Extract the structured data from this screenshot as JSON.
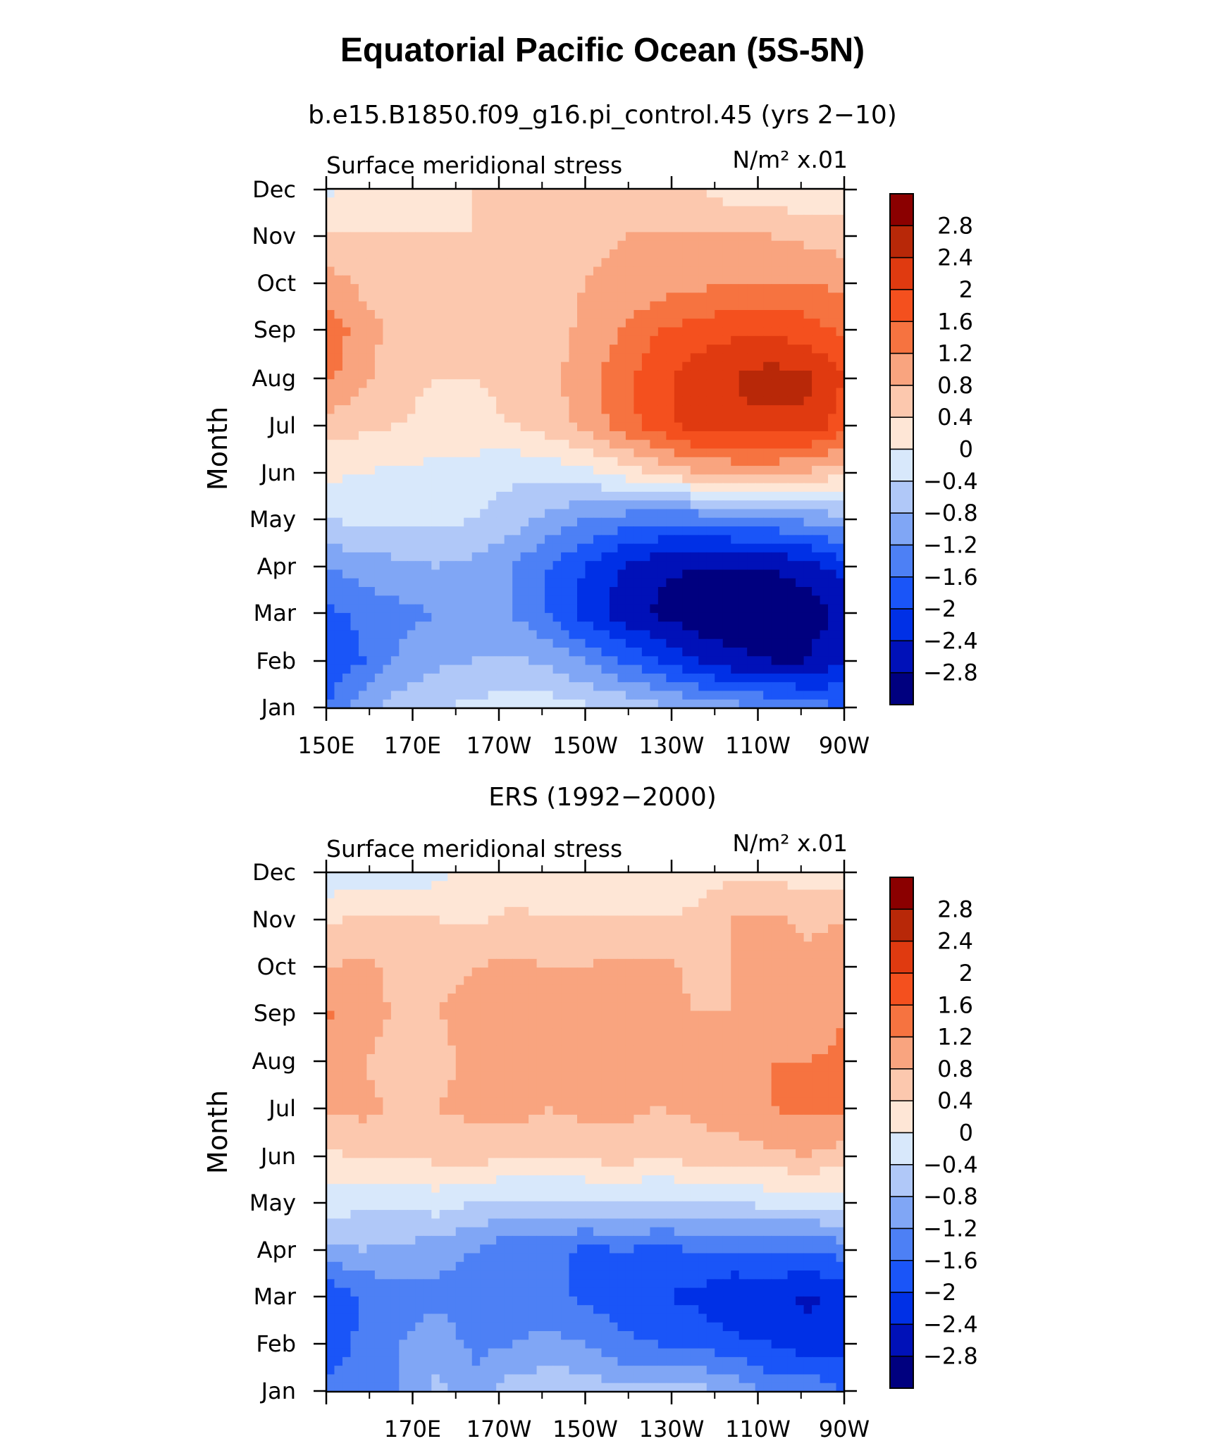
{
  "title": "Equatorial Pacific Ocean (5S-5N)",
  "chart_data": [
    {
      "type": "heatmap",
      "subtitle": "b.e15.B1850.f09_g16.pi_control.45 (yrs 2−10)",
      "left_label": "Surface meridional stress",
      "units": "N/m² x.01",
      "ylabel": "Month",
      "x_tick_labels": [
        "150E",
        "170E",
        "170W",
        "150W",
        "130W",
        "110W",
        "90W"
      ],
      "y_tick_labels": [
        "Jan",
        "Feb",
        "Mar",
        "Apr",
        "May",
        "Jun",
        "Jul",
        "Aug",
        "Sep",
        "Oct",
        "Nov",
        "Dec"
      ],
      "lon_range": [
        150,
        270
      ],
      "months": 12,
      "values": [
        [
          -1.6,
          -1.0,
          -0.6,
          -0.4,
          -0.3,
          -0.2,
          -0.2,
          -0.3,
          -0.5,
          -0.7,
          -0.9,
          -1.0,
          -1.2,
          -1.4,
          -1.6
        ],
        [
          -1.9,
          -1.6,
          -1.1,
          -0.9,
          -0.8,
          -0.7,
          -0.9,
          -1.2,
          -1.6,
          -2.0,
          -2.4,
          -2.7,
          -2.8,
          -2.8,
          -2.4
        ],
        [
          -1.7,
          -1.5,
          -1.3,
          -1.2,
          -1.1,
          -1.2,
          -1.6,
          -2.2,
          -2.6,
          -2.9,
          -3.1,
          -3.1,
          -3.1,
          -3.0,
          -2.7
        ],
        [
          -1.2,
          -1.0,
          -0.9,
          -0.8,
          -0.9,
          -1.2,
          -1.6,
          -2.0,
          -2.4,
          -2.7,
          -2.8,
          -2.8,
          -2.8,
          -2.6,
          -2.2
        ],
        [
          -0.4,
          -0.3,
          -0.3,
          -0.3,
          -0.4,
          -0.6,
          -0.9,
          -1.2,
          -1.4,
          -1.5,
          -1.5,
          -1.4,
          -1.3,
          -1.1,
          -0.9
        ],
        [
          0.1,
          0.0,
          -0.1,
          -0.1,
          -0.2,
          -0.3,
          -0.3,
          -0.1,
          0.2,
          0.5,
          0.8,
          0.9,
          0.9,
          0.8,
          0.5
        ],
        [
          0.6,
          0.5,
          0.4,
          0.3,
          0.3,
          0.4,
          0.6,
          0.9,
          1.4,
          1.8,
          2.2,
          2.3,
          2.3,
          2.3,
          1.8
        ],
        [
          1.3,
          0.9,
          0.5,
          0.4,
          0.4,
          0.5,
          0.7,
          1.0,
          1.5,
          1.9,
          2.2,
          2.4,
          2.6,
          2.5,
          2.0
        ],
        [
          1.5,
          1.0,
          0.6,
          0.5,
          0.5,
          0.5,
          0.6,
          0.9,
          1.2,
          1.6,
          1.8,
          1.9,
          1.9,
          1.8,
          1.5
        ],
        [
          1.0,
          0.7,
          0.6,
          0.5,
          0.5,
          0.5,
          0.6,
          0.8,
          0.9,
          1.0,
          1.1,
          1.2,
          1.2,
          1.2,
          1.1
        ],
        [
          0.4,
          0.4,
          0.4,
          0.4,
          0.4,
          0.5,
          0.6,
          0.7,
          0.8,
          0.8,
          0.8,
          0.8,
          0.8,
          0.7,
          0.6
        ],
        [
          -0.1,
          0.1,
          0.2,
          0.3,
          0.4,
          0.5,
          0.5,
          0.6,
          0.6,
          0.5,
          0.4,
          0.2,
          0.1,
          0.1,
          0.2
        ]
      ]
    },
    {
      "type": "heatmap",
      "subtitle": "ERS (1992−2000)",
      "left_label": "Surface meridional stress",
      "units": "N/m² x.01",
      "ylabel": "Month",
      "x_tick_labels": [
        "170E",
        "170W",
        "150W",
        "130W",
        "110W",
        "90W"
      ],
      "y_tick_labels": [
        "Jan",
        "Feb",
        "Mar",
        "Apr",
        "May",
        "Jun",
        "Jul",
        "Aug",
        "Sep",
        "Oct",
        "Nov",
        "Dec"
      ],
      "lon_range": [
        150,
        270
      ],
      "months": 12,
      "values": [
        [
          -1.5,
          -1.4,
          -1.2,
          -0.7,
          -1.1,
          -0.6,
          -0.5,
          -0.5,
          -0.7,
          -0.7,
          -0.6,
          -0.9,
          -1.3,
          -1.3,
          -1.6
        ],
        [
          -1.8,
          -1.5,
          -1.2,
          -0.9,
          -1.3,
          -1.2,
          -1.1,
          -1.2,
          -1.5,
          -1.6,
          -1.7,
          -1.9,
          -2.0,
          -2.2,
          -2.1
        ],
        [
          -2.0,
          -1.6,
          -1.4,
          -1.3,
          -1.6,
          -1.5,
          -1.4,
          -1.7,
          -1.8,
          -2.0,
          -2.1,
          -2.4,
          -2.3,
          -2.5,
          -2.3
        ],
        [
          -0.9,
          -0.8,
          -0.9,
          -1.0,
          -1.2,
          -1.5,
          -1.4,
          -1.7,
          -1.6,
          -1.7,
          -1.6,
          -1.6,
          -1.5,
          -1.6,
          -1.4
        ],
        [
          -0.2,
          -0.3,
          -0.3,
          -0.2,
          -0.4,
          -0.5,
          -0.5,
          -0.5,
          -0.4,
          -0.5,
          -0.4,
          -0.4,
          -0.3,
          -0.3,
          -0.2
        ],
        [
          0.3,
          0.5,
          0.5,
          0.5,
          0.6,
          0.4,
          0.5,
          0.5,
          0.6,
          0.4,
          0.6,
          0.6,
          0.7,
          0.8,
          0.6
        ],
        [
          0.9,
          0.9,
          0.7,
          0.8,
          0.9,
          1.0,
          0.8,
          0.9,
          0.9,
          0.8,
          0.9,
          1.0,
          1.2,
          1.3,
          1.3
        ],
        [
          0.9,
          0.8,
          0.6,
          0.7,
          0.9,
          0.9,
          0.9,
          1.0,
          1.0,
          0.9,
          0.8,
          0.9,
          1.2,
          1.2,
          1.3
        ],
        [
          1.3,
          1.0,
          0.7,
          0.8,
          0.9,
          1.0,
          0.9,
          0.9,
          1.0,
          0.9,
          0.8,
          0.8,
          0.9,
          0.9,
          1.2
        ],
        [
          0.8,
          0.9,
          0.7,
          0.7,
          0.8,
          0.9,
          0.8,
          0.8,
          0.9,
          0.9,
          0.7,
          0.8,
          0.9,
          0.9,
          1.1
        ],
        [
          0.3,
          0.5,
          0.4,
          0.4,
          0.3,
          0.5,
          0.4,
          0.4,
          0.4,
          0.4,
          0.5,
          0.8,
          0.9,
          0.7,
          0.8
        ],
        [
          -0.3,
          -0.2,
          -0.3,
          -0.1,
          0.2,
          0.1,
          0.1,
          0.2,
          0.2,
          0.1,
          0.2,
          0.3,
          0.3,
          0.2,
          0.2
        ]
      ]
    }
  ],
  "colorbar": {
    "levels": [
      -2.8,
      -2.4,
      -2.0,
      -1.6,
      -1.2,
      -0.8,
      -0.4,
      0,
      0.4,
      0.8,
      1.2,
      1.6,
      2.0,
      2.4,
      2.8
    ],
    "tick_labels": [
      "2.8",
      "2.4",
      "2",
      "1.6",
      "1.2",
      "0.8",
      "0.4",
      "0",
      "−0.4",
      "−0.8",
      "−1.2",
      "−1.6",
      "−2",
      "−2.4",
      "−2.8"
    ],
    "colors": [
      "#00007f",
      "#0011b8",
      "#0030e6",
      "#1a55f8",
      "#4d80f5",
      "#80a6f5",
      "#b0c8f8",
      "#d8e8fb",
      "#fee6d6",
      "#fcc8ae",
      "#f9a47f",
      "#f67340",
      "#f4501e",
      "#e03a10",
      "#b82808",
      "#8b0000"
    ]
  }
}
